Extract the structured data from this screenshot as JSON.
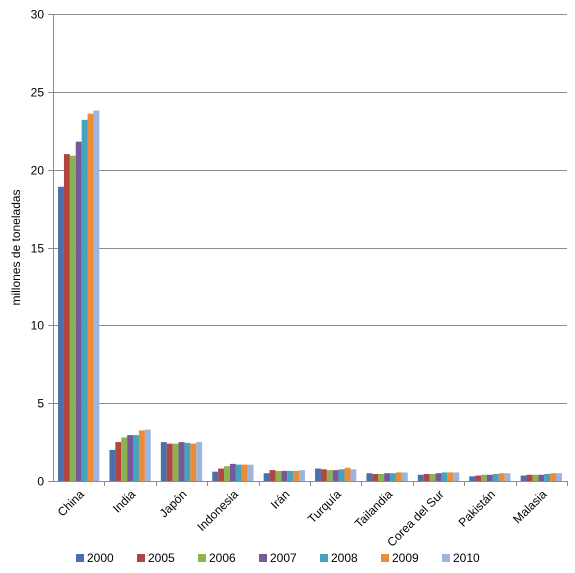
{
  "chart_data": {
    "type": "bar",
    "ylabel": "millones de toneladas",
    "ylim": [
      0,
      30
    ],
    "yticks": [
      "0",
      "5",
      "10",
      "15",
      "20",
      "25",
      "30"
    ],
    "grid": true,
    "legend_position": "bottom",
    "categories": [
      "China",
      "India",
      "Japón",
      "Indonesia",
      "Irán",
      "Turquía",
      "Tailandia",
      "Corea del Sur",
      "Pakistán",
      "Malasia"
    ],
    "series": [
      {
        "name": "2000",
        "color": "#4a6fad",
        "values": [
          18.9,
          2.0,
          2.5,
          0.6,
          0.5,
          0.8,
          0.5,
          0.4,
          0.3,
          0.35
        ]
      },
      {
        "name": "2005",
        "color": "#b04542",
        "values": [
          21.0,
          2.5,
          2.4,
          0.8,
          0.7,
          0.75,
          0.45,
          0.45,
          0.35,
          0.4
        ]
      },
      {
        "name": "2006",
        "color": "#8db250",
        "values": [
          20.9,
          2.8,
          2.4,
          0.95,
          0.65,
          0.7,
          0.45,
          0.45,
          0.4,
          0.4
        ]
      },
      {
        "name": "2007",
        "color": "#76599a",
        "values": [
          21.8,
          2.95,
          2.5,
          1.1,
          0.65,
          0.7,
          0.5,
          0.5,
          0.4,
          0.4
        ]
      },
      {
        "name": "2008",
        "color": "#44a3bd",
        "values": [
          23.2,
          2.95,
          2.45,
          1.05,
          0.65,
          0.75,
          0.5,
          0.55,
          0.45,
          0.45
        ]
      },
      {
        "name": "2009",
        "color": "#ec8b38",
        "values": [
          23.6,
          3.25,
          2.4,
          1.05,
          0.65,
          0.85,
          0.55,
          0.55,
          0.5,
          0.5
        ]
      },
      {
        "name": "2010",
        "color": "#9db4dd",
        "values": [
          23.8,
          3.3,
          2.5,
          1.05,
          0.7,
          0.75,
          0.55,
          0.55,
          0.5,
          0.5
        ]
      }
    ]
  }
}
